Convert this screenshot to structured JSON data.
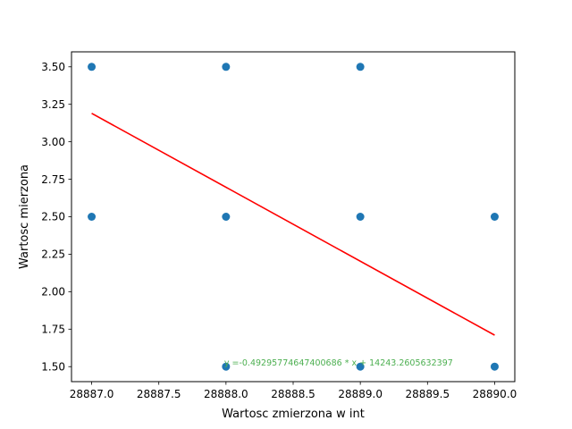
{
  "chart_data": {
    "type": "scatter",
    "title": "",
    "xlabel": "Wartosc zmierzona w int",
    "ylabel": "Wartosc mierzona",
    "xlim": [
      28886.85,
      28890.15
    ],
    "ylim": [
      1.4,
      3.6
    ],
    "xticks": [
      28887.0,
      28887.5,
      28888.0,
      28888.5,
      28889.0,
      28889.5,
      28890.0
    ],
    "xtick_labels": [
      "28887.0",
      "28887.5",
      "28888.0",
      "28888.5",
      "28889.0",
      "28889.5",
      "28890.0"
    ],
    "yticks": [
      1.5,
      1.75,
      2.0,
      2.25,
      2.5,
      2.75,
      3.0,
      3.25,
      3.5
    ],
    "ytick_labels": [
      "1.50",
      "1.75",
      "2.00",
      "2.25",
      "2.50",
      "2.75",
      "3.00",
      "3.25",
      "3.50"
    ],
    "grid": false,
    "series": [
      {
        "kind": "scatter",
        "color": "#1f77b4",
        "points": [
          {
            "x": 28887,
            "y": 3.5
          },
          {
            "x": 28887,
            "y": 2.5
          },
          {
            "x": 28888,
            "y": 3.5
          },
          {
            "x": 28888,
            "y": 2.5
          },
          {
            "x": 28888,
            "y": 1.5
          },
          {
            "x": 28889,
            "y": 3.5
          },
          {
            "x": 28889,
            "y": 2.5
          },
          {
            "x": 28889,
            "y": 1.5
          },
          {
            "x": 28890,
            "y": 2.5
          },
          {
            "x": 28890,
            "y": 1.5
          }
        ]
      },
      {
        "kind": "line",
        "color": "#ff0000",
        "points": [
          {
            "x": 28887,
            "y": 3.19
          },
          {
            "x": 28890,
            "y": 1.71
          }
        ]
      }
    ],
    "annotation": {
      "text": "y =-0.49295774647400686 * x + 14243.2605632397",
      "color": "#4caf50",
      "x": 28888.0,
      "y": 1.52
    }
  }
}
